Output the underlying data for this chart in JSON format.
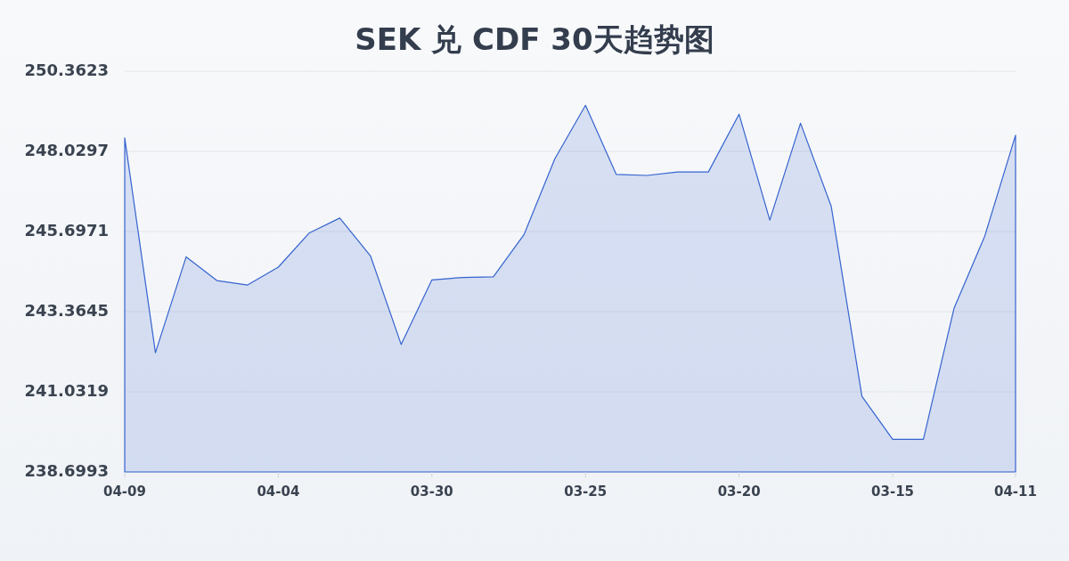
{
  "chart_data": {
    "type": "area",
    "title": "SEK 兑 CDF 30天趋势图",
    "categories": [
      "04-09",
      null,
      null,
      null,
      null,
      "04-04",
      null,
      null,
      null,
      null,
      "03-30",
      null,
      null,
      null,
      null,
      "03-25",
      null,
      null,
      null,
      null,
      "03-20",
      null,
      null,
      null,
      null,
      "03-15",
      null,
      null,
      null,
      "04-11"
    ],
    "values": [
      248.42,
      242.17,
      244.96,
      244.27,
      244.14,
      244.66,
      245.65,
      246.09,
      244.99,
      242.41,
      244.29,
      244.36,
      244.38,
      245.61,
      247.81,
      249.37,
      247.36,
      247.33,
      247.43,
      247.43,
      249.11,
      246.03,
      248.85,
      246.43,
      240.9,
      239.65,
      239.65,
      243.47,
      245.57,
      248.5
    ],
    "color": "#3563cf",
    "ylim": [
      238.6993,
      250.3623
    ],
    "yticks": [
      238.6993,
      241.0319,
      243.3645,
      245.6971,
      248.0297,
      250.3623
    ],
    "grid": "y"
  }
}
